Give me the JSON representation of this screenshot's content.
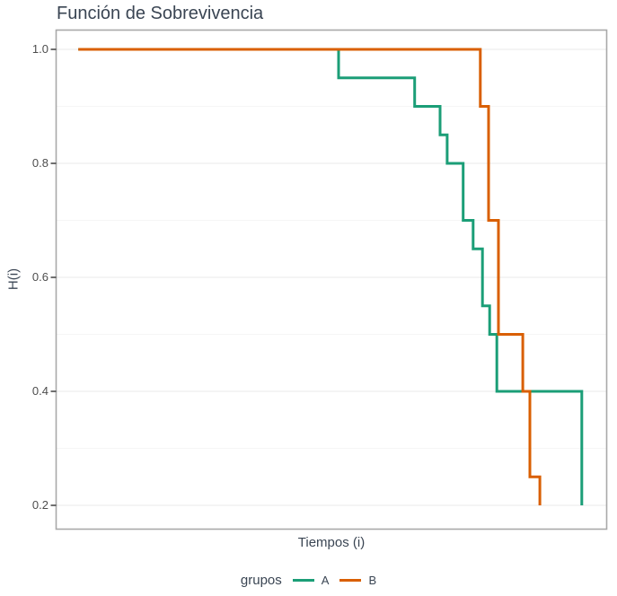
{
  "title": "Función de Sobrevivencia",
  "y_axis": {
    "label": "H(i)",
    "tick_labels": [
      "1.0",
      "0.8",
      "0.6",
      "0.4",
      "0.2"
    ],
    "tick_values": [
      1.0,
      0.8,
      0.6,
      0.4,
      0.2
    ],
    "minor_values": [
      0.9,
      0.7,
      0.5,
      0.3
    ]
  },
  "x_axis": {
    "label": "Tiempos (i)",
    "tick_labels": []
  },
  "legend": {
    "title": "grupos",
    "entries": [
      {
        "label": "A",
        "color": "#1B9E77"
      },
      {
        "label": "B",
        "color": "#D95F02"
      }
    ]
  },
  "colors": {
    "series_a": "#1B9E77",
    "series_b": "#D95F02",
    "text": "#3A4553",
    "tick_text": "#4D4D4D",
    "panel_border": "#A9A9A9",
    "grid_major": "#EDEDED",
    "grid_minor": "#F6F6F6",
    "tick_mark": "#333333",
    "background": "#FFFFFF"
  },
  "chart_data": {
    "type": "line",
    "subtype": "step-function survival curves (Kaplan-Meier style)",
    "title": "Función de Sobrevivencia",
    "xlabel": "Tiempos (i)",
    "ylabel": "H(i)",
    "ylim": [
      0.16,
      1.04
    ],
    "yticks": [
      0.2,
      0.4,
      0.6,
      0.8,
      1.0
    ],
    "grid": "horizontal-only",
    "legend_title": "grupos",
    "legend_position": "bottom",
    "x_note": "x axis has no tick labels; x values are fractions (0-1) of the axis width",
    "series": [
      {
        "name": "A",
        "color": "#1B9E77",
        "start": [
          0.041,
          1.0
        ],
        "steps": [
          [
            0.513,
            0.95
          ],
          [
            0.651,
            0.9
          ],
          [
            0.697,
            0.85
          ],
          [
            0.71,
            0.8
          ],
          [
            0.739,
            0.7
          ],
          [
            0.757,
            0.65
          ],
          [
            0.774,
            0.55
          ],
          [
            0.787,
            0.5
          ],
          [
            0.8,
            0.4
          ],
          [
            0.954,
            0.2
          ]
        ]
      },
      {
        "name": "B",
        "color": "#D95F02",
        "start": [
          0.041,
          1.0
        ],
        "steps": [
          [
            0.77,
            0.9
          ],
          [
            0.785,
            0.7
          ],
          [
            0.803,
            0.5
          ],
          [
            0.847,
            0.4
          ],
          [
            0.86,
            0.25
          ],
          [
            0.878,
            0.2
          ]
        ]
      }
    ]
  }
}
